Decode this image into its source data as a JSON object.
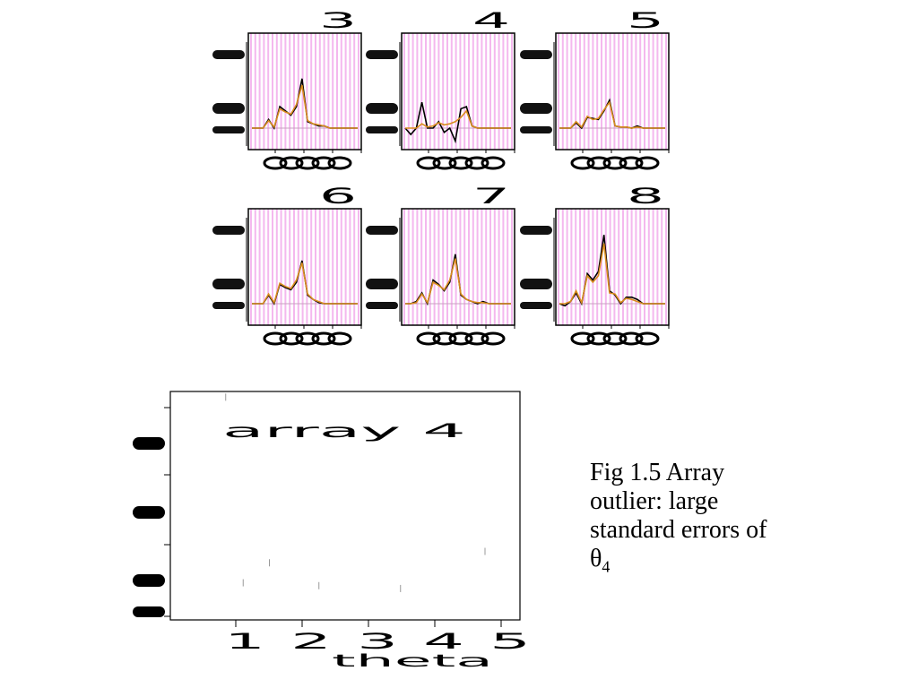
{
  "caption": {
    "line1": "Fig 1.5 Array",
    "line2": "outlier: large",
    "line3": "standard errors of",
    "symbol": "θ",
    "subscript": "4"
  },
  "colors": {
    "band": "#f4b8ee",
    "primary_line": "#000000",
    "secondary_line": "#d98c1e"
  },
  "chart_data": [
    {
      "type": "line",
      "panel": "3",
      "x": [
        1,
        2,
        3,
        4,
        5,
        6,
        7,
        8,
        9,
        10,
        11,
        12,
        13,
        14,
        15,
        16,
        17,
        18,
        19,
        20
      ],
      "series": [
        {
          "values": [
            0,
            0,
            0,
            0.4,
            0,
            1.0,
            0.8,
            0.6,
            1.0,
            2.3,
            0.3,
            0.2,
            0.1,
            0.1,
            0,
            0,
            0,
            0,
            0,
            0
          ]
        },
        {
          "values": [
            0,
            0,
            0,
            0.35,
            0.05,
            0.9,
            0.75,
            0.65,
            1.1,
            2.0,
            0.35,
            0.2,
            0.15,
            0.1,
            0,
            0,
            0,
            0,
            0,
            0
          ]
        }
      ]
    },
    {
      "type": "line",
      "panel": "4",
      "x": [
        1,
        2,
        3,
        4,
        5,
        6,
        7,
        8,
        9,
        10,
        11,
        12,
        13,
        14,
        15,
        16,
        17,
        18,
        19,
        20
      ],
      "series": [
        {
          "values": [
            0,
            -0.3,
            0,
            1.2,
            0,
            0,
            0.3,
            -0.2,
            0,
            -0.6,
            0.9,
            1.0,
            0.1,
            0,
            0,
            0,
            0,
            0,
            0,
            0
          ]
        },
        {
          "values": [
            0,
            0,
            0,
            0.2,
            0.05,
            0.1,
            0.25,
            0.15,
            0.2,
            0.3,
            0.5,
            0.8,
            0.1,
            0,
            0,
            0,
            0,
            0,
            0,
            0
          ]
        }
      ]
    },
    {
      "type": "line",
      "panel": "5",
      "x": [
        1,
        2,
        3,
        4,
        5,
        6,
        7,
        8,
        9,
        10,
        11,
        12,
        13,
        14,
        15,
        16,
        17,
        18,
        19,
        20
      ],
      "series": [
        {
          "values": [
            0,
            0,
            0,
            0.25,
            0,
            0.5,
            0.45,
            0.4,
            0.8,
            1.3,
            0.1,
            0.05,
            0.05,
            0,
            0.1,
            0,
            0,
            0,
            0,
            0
          ]
        },
        {
          "values": [
            0,
            0,
            0,
            0.3,
            0.05,
            0.55,
            0.4,
            0.45,
            0.85,
            1.2,
            0.1,
            0.05,
            0.05,
            0,
            0.05,
            0,
            0,
            0,
            0,
            0
          ]
        }
      ]
    },
    {
      "type": "line",
      "panel": "6",
      "x": [
        1,
        2,
        3,
        4,
        5,
        6,
        7,
        8,
        9,
        10,
        11,
        12,
        13,
        14,
        15,
        16,
        17,
        18,
        19,
        20
      ],
      "series": [
        {
          "values": [
            0,
            0,
            0,
            0.4,
            0,
            0.9,
            0.75,
            0.65,
            1.0,
            2.0,
            0.4,
            0.2,
            0.05,
            0,
            0,
            0,
            0,
            0,
            0,
            0
          ]
        },
        {
          "values": [
            0,
            0,
            0,
            0.45,
            0.05,
            0.95,
            0.8,
            0.7,
            1.1,
            1.9,
            0.45,
            0.2,
            0.1,
            0,
            0,
            0,
            0,
            0,
            0,
            0
          ]
        }
      ]
    },
    {
      "type": "line",
      "panel": "7",
      "x": [
        1,
        2,
        3,
        4,
        5,
        6,
        7,
        8,
        9,
        10,
        11,
        12,
        13,
        14,
        15,
        16,
        17,
        18,
        19,
        20
      ],
      "series": [
        {
          "values": [
            0,
            0,
            0.1,
            0.5,
            0,
            1.1,
            0.9,
            0.6,
            1.0,
            2.3,
            0.4,
            0.2,
            0.1,
            0,
            0.1,
            0,
            0,
            0,
            0,
            0
          ]
        },
        {
          "values": [
            0,
            0,
            0.05,
            0.45,
            0.05,
            1.0,
            0.85,
            0.65,
            1.1,
            2.1,
            0.45,
            0.2,
            0.1,
            0.05,
            0.05,
            0,
            0,
            0,
            0,
            0
          ]
        }
      ]
    },
    {
      "type": "line",
      "panel": "8",
      "x": [
        1,
        2,
        3,
        4,
        5,
        6,
        7,
        8,
        9,
        10,
        11,
        12,
        13,
        14,
        15,
        16,
        17,
        18,
        19,
        20
      ],
      "series": [
        {
          "values": [
            0,
            -0.1,
            0.1,
            0.5,
            0,
            1.4,
            1.1,
            1.5,
            3.2,
            0.6,
            0.4,
            0,
            0.3,
            0.3,
            0.2,
            0,
            0,
            0,
            0,
            0
          ]
        },
        {
          "values": [
            0,
            0,
            0.1,
            0.6,
            0.05,
            1.3,
            1.0,
            1.3,
            2.8,
            0.5,
            0.45,
            0.05,
            0.25,
            0.2,
            0.1,
            0,
            0,
            0,
            0,
            0
          ]
        }
      ]
    },
    {
      "type": "scatter",
      "title": "array 4",
      "xlabel": "theta",
      "x_tick_labels": [
        "1",
        "2",
        "3",
        "4",
        "5"
      ],
      "xlim": [
        0,
        6
      ],
      "ylim": [
        0,
        4
      ],
      "points": [
        {
          "x": 1.25,
          "y": 0.65
        },
        {
          "x": 1.7,
          "y": 1.0
        },
        {
          "x": 2.55,
          "y": 0.6
        },
        {
          "x": 3.95,
          "y": 0.55
        },
        {
          "x": 5.4,
          "y": 1.2
        },
        {
          "x": 0.95,
          "y": 3.9
        }
      ]
    }
  ]
}
